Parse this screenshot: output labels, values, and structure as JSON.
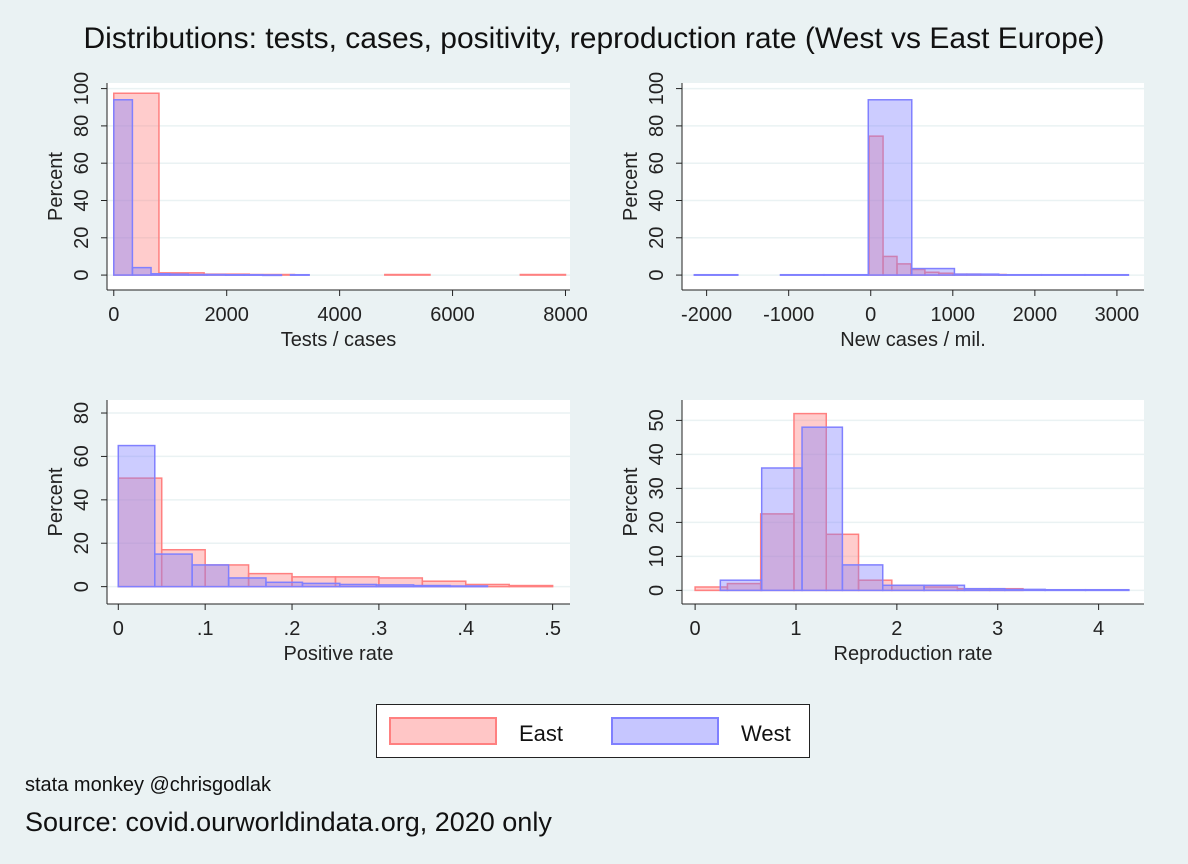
{
  "title": "Distributions: tests, cases, positivity, reproduction rate (West vs East Europe)",
  "note": "stata monkey @chrisgodlak",
  "source": "Source: covid.ourworldindata.org, 2020 only",
  "colors": {
    "East": "#ff8080",
    "West": "#8080ff",
    "background": "#eaf2f3"
  },
  "legend": {
    "position": "bottom",
    "entries": [
      "East",
      "West"
    ]
  },
  "chart_data": [
    {
      "type": "histogram",
      "xlabel": "Tests / cases",
      "ylabel": "Percent",
      "xlim": [
        -120,
        8080
      ],
      "ylim": [
        -8,
        103
      ],
      "xticks": [
        0,
        2000,
        4000,
        6000,
        8000
      ],
      "xtick_labels": [
        "0",
        "2000",
        "4000",
        "6000",
        "8000"
      ],
      "yticks": [
        0,
        20,
        40,
        60,
        80,
        100
      ],
      "ytick_labels": [
        "0",
        "20",
        "40",
        "60",
        "80",
        "100"
      ],
      "grid": true,
      "series": [
        {
          "name": "East",
          "bins": [
            [
              0,
              800,
              97.5
            ],
            [
              800,
              1600,
              1.2
            ],
            [
              1600,
              2400,
              0.5
            ],
            [
              2400,
              3200,
              0.3
            ],
            [
              4800,
              5600,
              0.3
            ],
            [
              7200,
              8000,
              0.3
            ]
          ]
        },
        {
          "name": "West",
          "bins": [
            [
              0,
              330,
              94
            ],
            [
              330,
              660,
              4
            ],
            [
              660,
              990,
              0.7
            ],
            [
              990,
              1320,
              0.5
            ],
            [
              1320,
              1650,
              0.3
            ],
            [
              1650,
              1980,
              0.3
            ],
            [
              1980,
              2310,
              0.2
            ],
            [
              2310,
              2640,
              0.2
            ],
            [
              2640,
              2970,
              0.1
            ],
            [
              3130,
              3460,
              0.2
            ]
          ]
        }
      ]
    },
    {
      "type": "histogram",
      "xlabel": "New cases / mil.",
      "ylabel": "Percent",
      "xlim": [
        -2300,
        3330
      ],
      "ylim": [
        -8,
        103
      ],
      "xticks": [
        -2000,
        -1000,
        0,
        1000,
        2000,
        3000
      ],
      "xtick_labels": [
        "-2000",
        "-1000",
        "0",
        "1000",
        "2000",
        "3000"
      ],
      "yticks": [
        0,
        20,
        40,
        60,
        80,
        100
      ],
      "ytick_labels": [
        "0",
        "20",
        "40",
        "60",
        "80",
        "100"
      ],
      "grid": true,
      "series": [
        {
          "name": "East",
          "bins": [
            [
              -20,
              150,
              74.5
            ],
            [
              150,
              320,
              10
            ],
            [
              320,
              490,
              6
            ],
            [
              490,
              660,
              3
            ],
            [
              660,
              830,
              1.5
            ],
            [
              830,
              1000,
              1
            ],
            [
              1000,
              1170,
              0.5
            ],
            [
              1170,
              1340,
              0.5
            ],
            [
              1340,
              1650,
              0.3
            ]
          ]
        },
        {
          "name": "West",
          "bins": [
            [
              -2150,
              -1620,
              0.2
            ],
            [
              -1100,
              -570,
              0.2
            ],
            [
              -570,
              -30,
              0.2
            ],
            [
              -30,
              500,
              94
            ],
            [
              500,
              1020,
              3.5
            ],
            [
              1020,
              1560,
              0.5
            ],
            [
              1560,
              2080,
              0.2
            ],
            [
              2080,
              2610,
              0.2
            ],
            [
              2610,
              3140,
              0.2
            ]
          ]
        }
      ]
    },
    {
      "type": "histogram",
      "xlabel": "Positive rate",
      "ylabel": "Percent",
      "xlim": [
        -0.013,
        0.52
      ],
      "ylim": [
        -8,
        86
      ],
      "xticks": [
        0,
        0.1,
        0.2,
        0.3,
        0.4,
        0.5
      ],
      "xtick_labels": [
        "0",
        ".1",
        ".2",
        ".3",
        ".4",
        ".5"
      ],
      "yticks": [
        0,
        20,
        40,
        60,
        80
      ],
      "ytick_labels": [
        "0",
        "20",
        "40",
        "60",
        "80"
      ],
      "grid": true,
      "series": [
        {
          "name": "East",
          "bins": [
            [
              0,
              0.05,
              50
            ],
            [
              0.05,
              0.1,
              17
            ],
            [
              0.1,
              0.15,
              10
            ],
            [
              0.15,
              0.2,
              6
            ],
            [
              0.2,
              0.25,
              4.5
            ],
            [
              0.25,
              0.3,
              4.5
            ],
            [
              0.3,
              0.35,
              4
            ],
            [
              0.35,
              0.4,
              2.5
            ],
            [
              0.4,
              0.45,
              1
            ],
            [
              0.45,
              0.5,
              0.5
            ]
          ]
        },
        {
          "name": "West",
          "bins": [
            [
              0,
              0.042,
              65
            ],
            [
              0.042,
              0.085,
              15
            ],
            [
              0.085,
              0.127,
              10
            ],
            [
              0.127,
              0.17,
              4
            ],
            [
              0.17,
              0.212,
              2
            ],
            [
              0.212,
              0.255,
              1.5
            ],
            [
              0.255,
              0.297,
              1
            ],
            [
              0.297,
              0.34,
              0.8
            ],
            [
              0.34,
              0.382,
              0.5
            ],
            [
              0.382,
              0.425,
              0.3
            ]
          ]
        }
      ]
    },
    {
      "type": "histogram",
      "xlabel": "Reproduction rate",
      "ylabel": "Percent",
      "xlim": [
        -0.13,
        4.45
      ],
      "ylim": [
        -4,
        56
      ],
      "xticks": [
        0,
        1,
        2,
        3,
        4
      ],
      "xtick_labels": [
        "0",
        "1",
        "2",
        "3",
        "4"
      ],
      "yticks": [
        0,
        10,
        20,
        30,
        40,
        50
      ],
      "ytick_labels": [
        "0",
        "10",
        "20",
        "30",
        "40",
        "50"
      ],
      "grid": true,
      "series": [
        {
          "name": "East",
          "bins": [
            [
              0,
              0.32,
              1
            ],
            [
              0.32,
              0.65,
              2
            ],
            [
              0.65,
              0.98,
              22.5
            ],
            [
              0.98,
              1.3,
              52
            ],
            [
              1.3,
              1.62,
              16.5
            ],
            [
              1.62,
              1.95,
              3
            ],
            [
              1.95,
              2.27,
              1.5
            ],
            [
              2.27,
              2.6,
              1
            ],
            [
              2.6,
              2.92,
              0.5
            ],
            [
              2.92,
              3.25,
              0.5
            ]
          ]
        },
        {
          "name": "West",
          "bins": [
            [
              0.25,
              0.66,
              3
            ],
            [
              0.66,
              1.06,
              36
            ],
            [
              1.06,
              1.46,
              48
            ],
            [
              1.46,
              1.86,
              7.5
            ],
            [
              1.86,
              2.27,
              1.5
            ],
            [
              2.27,
              2.67,
              1.5
            ],
            [
              2.67,
              3.07,
              0.5
            ],
            [
              3.07,
              3.47,
              0.3
            ],
            [
              3.47,
              3.87,
              0.2
            ],
            [
              3.87,
              4.3,
              0.2
            ]
          ]
        }
      ]
    }
  ]
}
